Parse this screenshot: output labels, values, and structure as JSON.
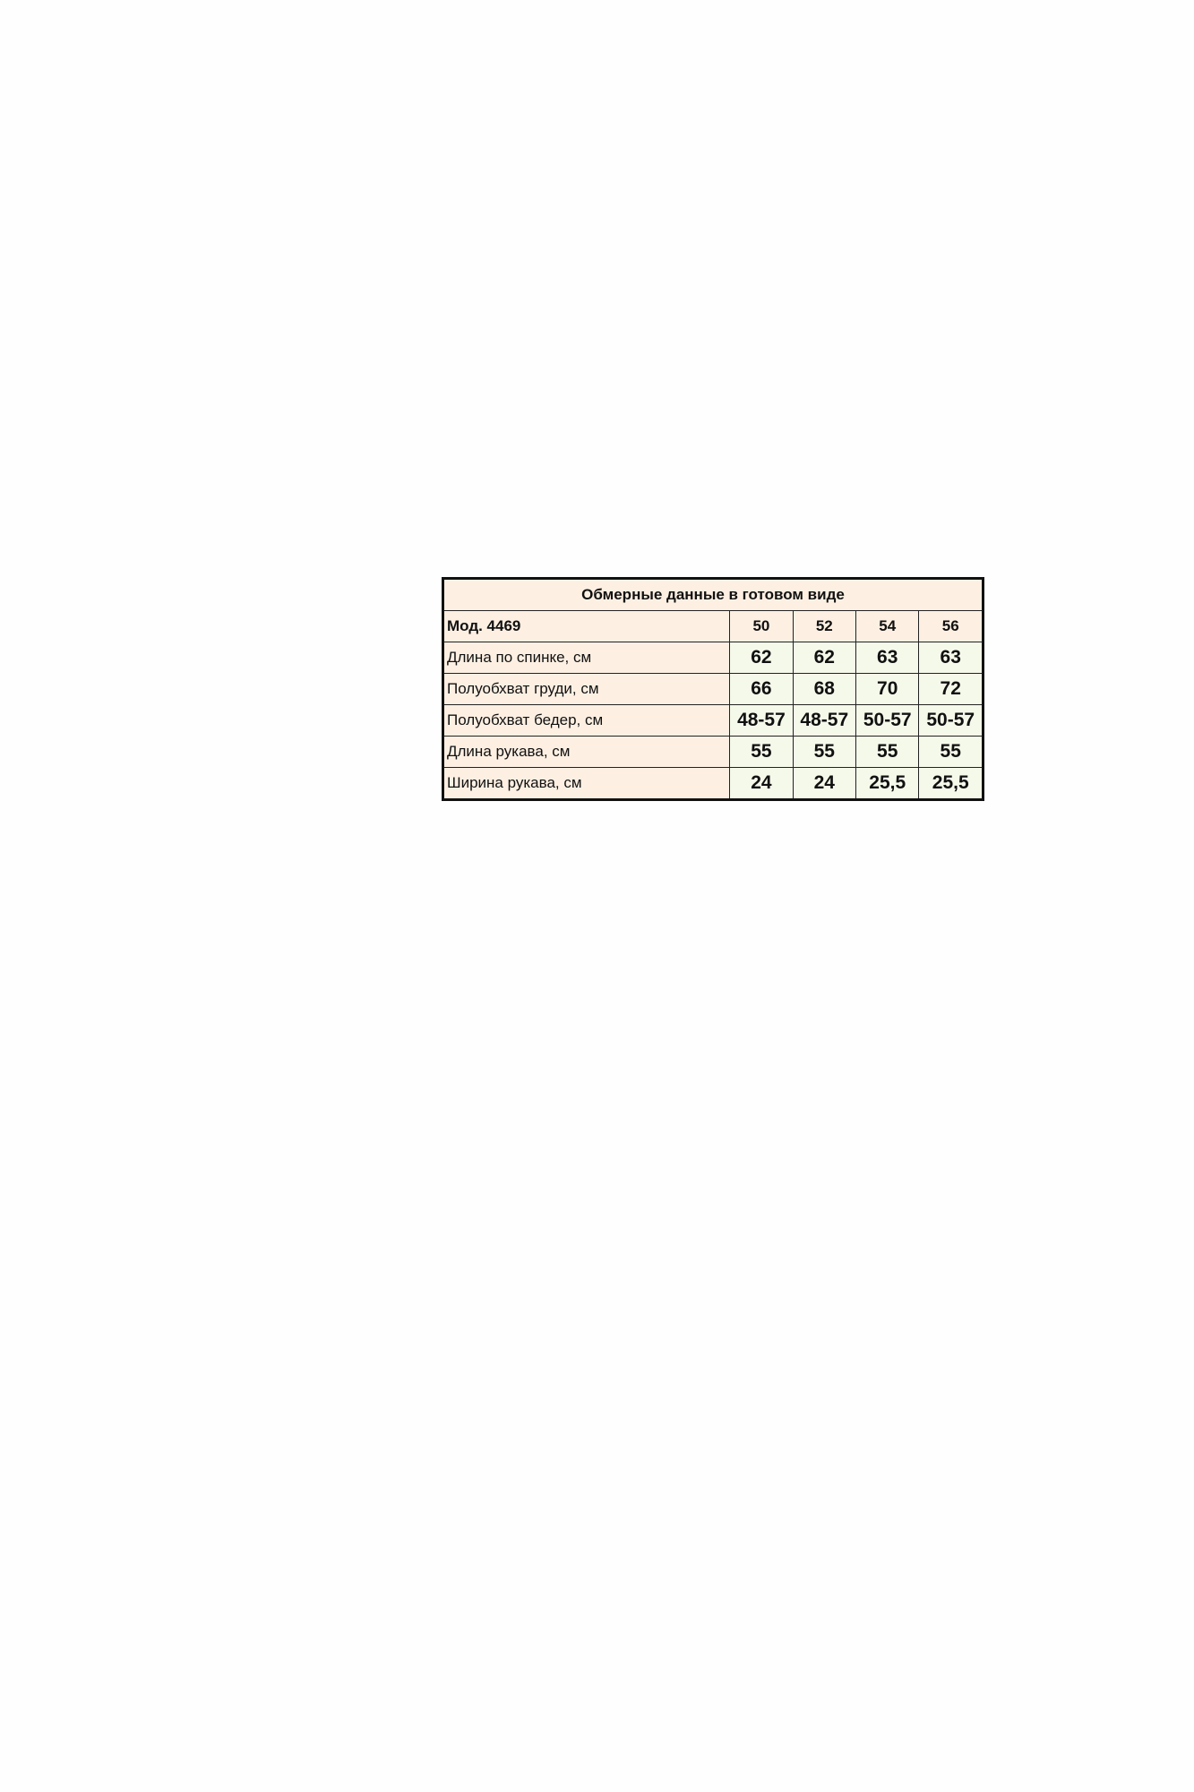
{
  "table": {
    "title": "Обмерные данные в готовом виде",
    "model": "Мод. 4469",
    "sizes": [
      "50",
      "52",
      "54",
      "56"
    ],
    "rows": [
      {
        "label": "Длина по спинке, см",
        "values": [
          "62",
          "62",
          "63",
          "63"
        ]
      },
      {
        "label": "Полуобхват груди, см",
        "values": [
          "66",
          "68",
          "70",
          "72"
        ]
      },
      {
        "label": "Полуобхват бедер, см",
        "values": [
          "48-57",
          "48-57",
          "50-57",
          "50-57"
        ]
      },
      {
        "label": "Длина рукава, см",
        "values": [
          "55",
          "55",
          "55",
          "55"
        ]
      },
      {
        "label": "Ширина рукава, см",
        "values": [
          "24",
          "24",
          "25,5",
          "25,5"
        ]
      }
    ],
    "colors": {
      "label_bg": "#fdf0e3",
      "value_bg": "#f5f9ea",
      "border": "#111111"
    }
  }
}
